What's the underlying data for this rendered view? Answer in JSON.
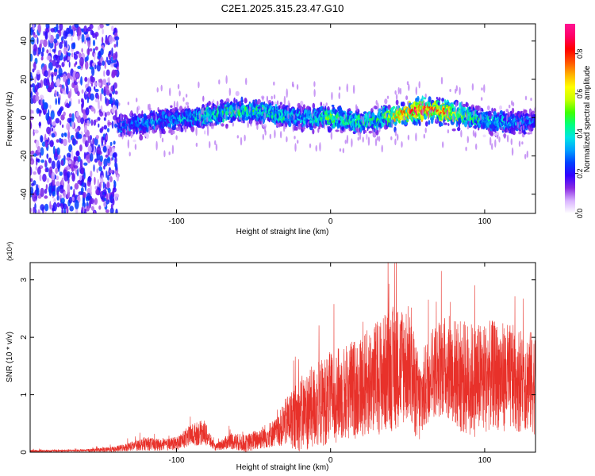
{
  "figure": {
    "title": "C2E1.2025.315.23.47.G10"
  },
  "chart_data": [
    {
      "type": "heatmap",
      "xlabel": "Height of straight line (km)",
      "ylabel": "Frequency (Hz)",
      "xlim": [
        -195,
        133
      ],
      "ylim": [
        -50,
        49
      ],
      "xticks": [
        -100,
        0,
        100
      ],
      "yticks": [
        -40,
        -20,
        0,
        20,
        40
      ],
      "colorbar": {
        "label": "Normalized spectral amplitude",
        "range": [
          0,
          0.95
        ],
        "ticks": [
          "0.0",
          "0.2",
          "0.4",
          "0.6",
          "0.8"
        ],
        "colormap": [
          "#ffffff",
          "#d9b3ff",
          "#8a2be2",
          "#3300ff",
          "#0040ff",
          "#00a0ff",
          "#00e5e5",
          "#00ff80",
          "#40ff00",
          "#c8ff00",
          "#ffff00",
          "#ffb000",
          "#ff5000",
          "#ff0000",
          "#ff0066",
          "#ff1493"
        ]
      },
      "ridge": {
        "x_km": [
          -138,
          -120,
          -105,
          -90,
          -75,
          -60,
          -45,
          -30,
          -15,
          0,
          15,
          30,
          45,
          60,
          75,
          90,
          105,
          120,
          133
        ],
        "freq_hz": [
          -4,
          -3,
          -1,
          0,
          2,
          4,
          3,
          1,
          0,
          0,
          -2,
          -1,
          2,
          4,
          3,
          1,
          -2,
          -3,
          -2
        ],
        "peak_amplitude": [
          0.3,
          0.35,
          0.35,
          0.4,
          0.45,
          0.5,
          0.45,
          0.45,
          0.4,
          0.55,
          0.5,
          0.45,
          0.75,
          0.9,
          0.8,
          0.5,
          0.4,
          0.35,
          0.3
        ]
      },
      "noise_region_km": [
        -195,
        -138
      ]
    },
    {
      "type": "line",
      "xlabel": "Height of straight line (km)",
      "ylabel": "SNR (10 * v/v)",
      "y_multiplier": "(x10⁴)",
      "xlim": [
        -195,
        133
      ],
      "ylim": [
        0,
        3.3
      ],
      "xticks": [
        -100,
        0,
        100
      ],
      "yticks": [
        0,
        1,
        2,
        3
      ],
      "series": [
        {
          "color": "#e8312a",
          "x": [
            -195,
            -160,
            -140,
            -130,
            -120,
            -110,
            -100,
            -90,
            -82,
            -75,
            -65,
            -55,
            -45,
            -35,
            -28,
            -20,
            -10,
            0,
            10,
            20,
            30,
            40,
            50,
            58,
            65,
            75,
            85,
            95,
            105,
            115,
            125,
            133
          ],
          "y": [
            0.02,
            0.03,
            0.05,
            0.1,
            0.15,
            0.12,
            0.15,
            0.3,
            0.35,
            0.08,
            0.2,
            0.15,
            0.25,
            0.35,
            0.55,
            0.65,
            0.8,
            0.95,
            1.05,
            1.15,
            1.3,
            1.45,
            1.55,
            0.85,
            1.4,
            1.5,
            1.3,
            1.25,
            1.35,
            1.3,
            1.25,
            1.2
          ],
          "spread": [
            0.02,
            0.02,
            0.05,
            0.08,
            0.12,
            0.1,
            0.12,
            0.2,
            0.22,
            0.05,
            0.15,
            0.15,
            0.2,
            0.25,
            0.45,
            0.65,
            0.75,
            0.8,
            0.85,
            0.9,
            1.0,
            1.1,
            1.05,
            0.75,
            0.8,
            0.9,
            1.0,
            1.0,
            0.95,
            0.95,
            0.9,
            0.9
          ]
        }
      ]
    }
  ]
}
